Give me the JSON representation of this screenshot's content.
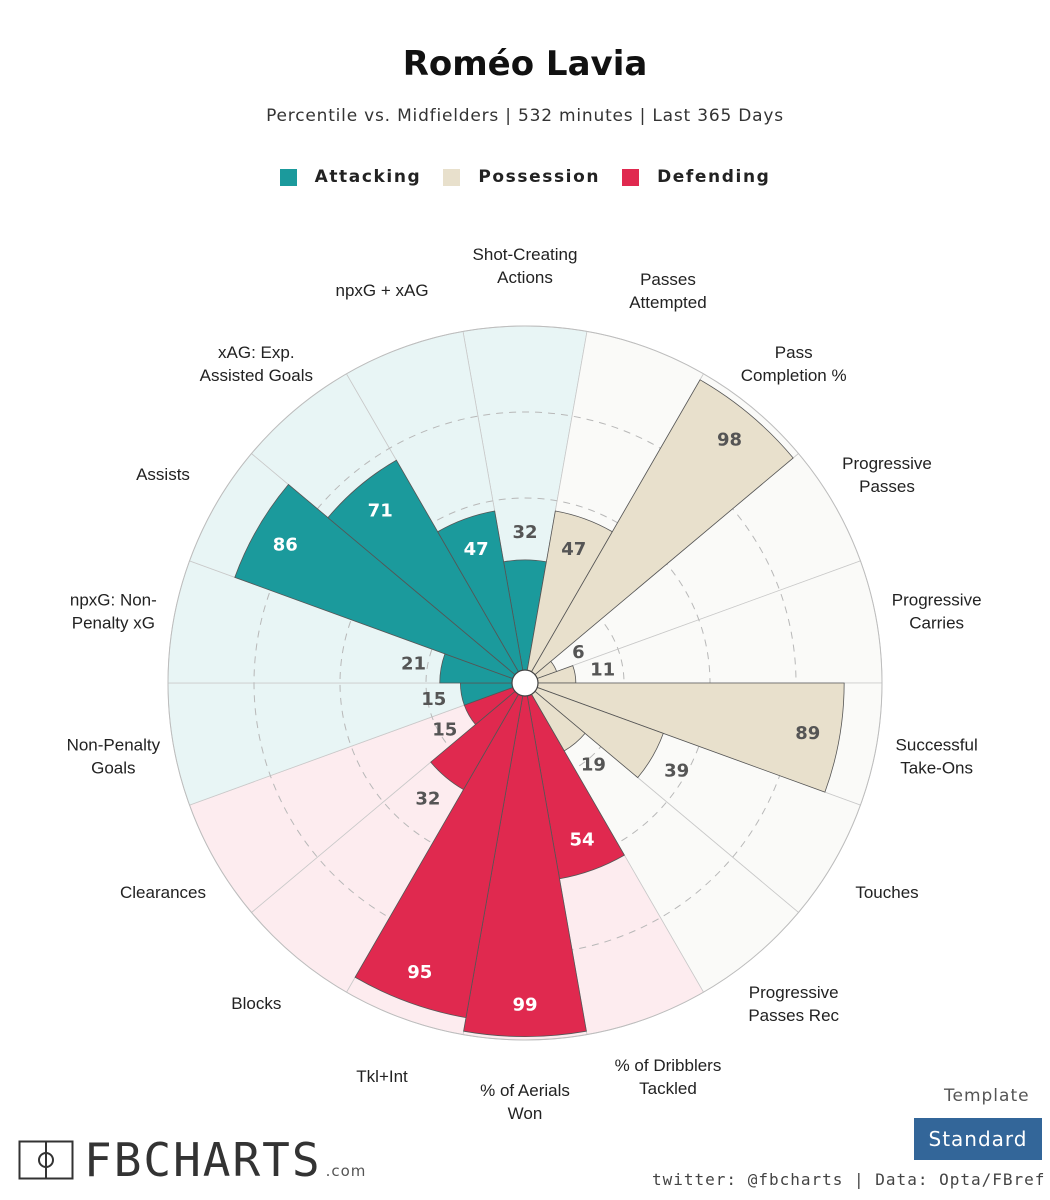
{
  "header": {
    "title": "Roméo Lavia",
    "subtitle": "Percentile vs. Midfielders | 532 minutes | Last 365 Days"
  },
  "legend": [
    {
      "label": "Attacking",
      "color": "#1b9a9c"
    },
    {
      "label": "Possession",
      "color": "#e8e0cc"
    },
    {
      "label": "Defending",
      "color": "#e0294f"
    }
  ],
  "chart_data": {
    "type": "polar-bar",
    "ylim": [
      0,
      100
    ],
    "categories": [
      {
        "label": "Shot-Creating\nActions",
        "value": 32,
        "group": "Attacking"
      },
      {
        "label": "Passes\nAttempted",
        "value": 47,
        "group": "Possession"
      },
      {
        "label": "Pass\nCompletion %",
        "value": 98,
        "group": "Possession"
      },
      {
        "label": "Progressive\nPasses",
        "value": 6,
        "group": "Possession"
      },
      {
        "label": "Progressive\nCarries",
        "value": 11,
        "group": "Possession"
      },
      {
        "label": "Successful\nTake-Ons",
        "value": 89,
        "group": "Possession"
      },
      {
        "label": "Touches",
        "value": 39,
        "group": "Possession"
      },
      {
        "label": "Progressive\nPasses Rec",
        "value": 19,
        "group": "Possession"
      },
      {
        "label": "% of Dribblers\nTackled",
        "value": 54,
        "group": "Defending"
      },
      {
        "label": "% of Aerials\nWon",
        "value": 99,
        "group": "Defending"
      },
      {
        "label": "Tkl+Int",
        "value": 95,
        "group": "Defending"
      },
      {
        "label": "Blocks",
        "value": 32,
        "group": "Defending"
      },
      {
        "label": "Clearances",
        "value": 15,
        "group": "Defending"
      },
      {
        "label": "Non-Penalty\nGoals",
        "value": 15,
        "group": "Attacking"
      },
      {
        "label": "npxG: Non-\nPenalty xG",
        "value": 21,
        "group": "Attacking"
      },
      {
        "label": "Assists",
        "value": 86,
        "group": "Attacking"
      },
      {
        "label": "xAG: Exp.\nAssisted Goals",
        "value": 71,
        "group": "Attacking"
      },
      {
        "label": "npxG + xAG",
        "value": 47,
        "group": "Attacking"
      }
    ],
    "colors": {
      "Attacking": {
        "bar": "#1b9a9c",
        "bg": "#e8f5f5",
        "text": "#ffffff"
      },
      "Possession": {
        "bar": "#e8e0cc",
        "bg": "#fafaf8",
        "text": "#555555"
      },
      "Defending": {
        "bar": "#e0294f",
        "bg": "#fdecef",
        "text": "#ffffff"
      }
    },
    "grid": true
  },
  "footer": {
    "logo": "FBCHARTS",
    "logo_domain": ".com",
    "template_label": "Template",
    "template_value": "Standard",
    "credit": "twitter: @fbcharts | Data: Opta/FBref"
  }
}
